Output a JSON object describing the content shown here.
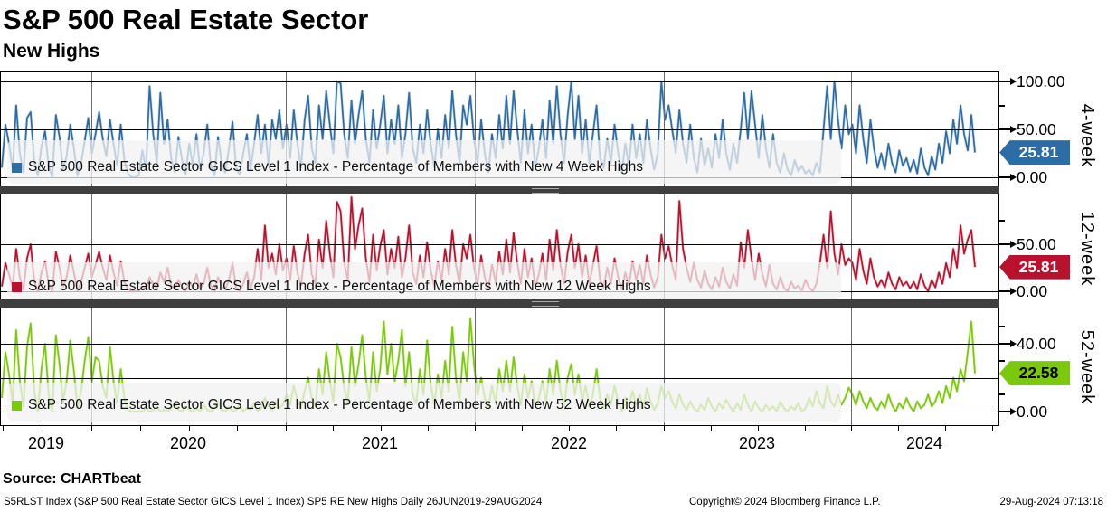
{
  "header": {
    "title": "S&P 500 Real Estate Sector",
    "subtitle": "New Highs"
  },
  "source": "Source: CHARTbeat",
  "footer": {
    "left": "S5RLST Index (S&P 500 Real Estate Sector GICS Level 1 Index) SP5 RE New Highs  Daily 26JUN2019-29AUG2024",
    "center": "Copyright© 2024 Bloomberg Finance L.P.",
    "right": "29-Aug-2024 07:13:18"
  },
  "x_axis": {
    "years": [
      "2019",
      "2020",
      "2021",
      "2022",
      "2023",
      "2024"
    ]
  },
  "chart_data": {
    "type": "line",
    "title": "S&P 500 Real Estate Sector New Highs",
    "periodicity": "Daily",
    "date_range": "26JUN2019-29AUG2024",
    "x_tick_labels": [
      "2019",
      "2020",
      "2021",
      "2022",
      "2023",
      "2024"
    ],
    "grid": true,
    "legend_position": "inside bottom-left of each panel",
    "sampling_note": "approximate weekly values read from pixels, percent of members",
    "panels": [
      {
        "name": "4-week",
        "legend": "S&P 500 Real Estate Sector GICS Level 1 Index - Percentage of Members with New 4 Week Highs",
        "color": "#2e6da4",
        "light_color": "#a9c4dd",
        "badge": "25.81",
        "badge_text_color": "#ffffff",
        "last_value": 25.81,
        "ylim": [
          -9,
          110
        ],
        "gridlines": [
          0,
          50,
          100
        ],
        "ticks": [
          {
            "v": 100,
            "label": "100.00"
          },
          {
            "v": 50,
            "label": "50.00"
          },
          {
            "v": 0,
            "label": "0.00"
          }
        ],
        "minor_ticks": [
          75
        ],
        "values": [
          10,
          55,
          35,
          8,
          75,
          25,
          5,
          62,
          68,
          15,
          2,
          32,
          48,
          12,
          0,
          65,
          42,
          8,
          22,
          55,
          30,
          2,
          15,
          38,
          62,
          25,
          45,
          68,
          40,
          22,
          60,
          35,
          12,
          55,
          18,
          4,
          0,
          0,
          2,
          28,
          8,
          95,
          45,
          15,
          88,
          35,
          60,
          20,
          5,
          42,
          18,
          3,
          35,
          12,
          45,
          8,
          25,
          55,
          12,
          2,
          42,
          15,
          5,
          30,
          58,
          10,
          3,
          25,
          45,
          8,
          35,
          65,
          25,
          55,
          12,
          60,
          40,
          70,
          30,
          55,
          20,
          70,
          35,
          10,
          60,
          85,
          30,
          15,
          75,
          40,
          90,
          55,
          25,
          100,
          98,
          45,
          20,
          80,
          35,
          65,
          90,
          40,
          15,
          70,
          30,
          55,
          85,
          25,
          60,
          35,
          75,
          20,
          45,
          88,
          30,
          15,
          55,
          25,
          70,
          35,
          10,
          50,
          20,
          65,
          30,
          90,
          45,
          15,
          75,
          55,
          85,
          40,
          15,
          60,
          25,
          5,
          45,
          20,
          65,
          30,
          85,
          35,
          90,
          50,
          15,
          70,
          25,
          55,
          10,
          30,
          60,
          20,
          80,
          35,
          95,
          45,
          15,
          65,
          100,
          40,
          85,
          25,
          60,
          15,
          45,
          75,
          20,
          10,
          40,
          15,
          55,
          25,
          5,
          35,
          12,
          55,
          20,
          45,
          15,
          60,
          30,
          8,
          25,
          100,
          60,
          75,
          50,
          25,
          70,
          35,
          15,
          55,
          20,
          5,
          40,
          12,
          30,
          10,
          45,
          20,
          60,
          25,
          8,
          35,
          15,
          50,
          88,
          40,
          90,
          55,
          20,
          65,
          30,
          10,
          45,
          15,
          5,
          25,
          8,
          2,
          18,
          6,
          12,
          4,
          8,
          2,
          15,
          5,
          50,
          95,
          40,
          100,
          60,
          30,
          75,
          45,
          55,
          25,
          75,
          40,
          15,
          60,
          30,
          10,
          25,
          8,
          35,
          15,
          5,
          28,
          12,
          20,
          6,
          18,
          4,
          30,
          10,
          2,
          22,
          8,
          35,
          15,
          48,
          25,
          60,
          35,
          75,
          45,
          28,
          65,
          25.81
        ]
      },
      {
        "name": "12-week",
        "legend": "S&P 500 Real Estate Sector GICS Level 1 Index - Percentage of Members with New 12 Week Highs",
        "color": "#b8122f",
        "light_color": "#dda0aa",
        "badge": "25.81",
        "badge_text_color": "#ffffff",
        "last_value": 25.81,
        "ylim": [
          -9,
          102
        ],
        "gridlines": [
          0,
          50
        ],
        "ticks": [
          {
            "v": 50,
            "label": "50.00"
          },
          {
            "v": 0,
            "label": "0.00"
          }
        ],
        "minor_ticks": [
          75
        ],
        "values": [
          5,
          30,
          18,
          4,
          45,
          15,
          2,
          35,
          50,
          10,
          0,
          20,
          32,
          8,
          0,
          42,
          25,
          5,
          15,
          38,
          20,
          0,
          10,
          25,
          40,
          15,
          28,
          42,
          25,
          12,
          38,
          20,
          6,
          32,
          10,
          2,
          0,
          0,
          0,
          5,
          2,
          15,
          8,
          3,
          20,
          10,
          25,
          6,
          2,
          12,
          5,
          0,
          10,
          4,
          18,
          3,
          8,
          25,
          6,
          0,
          15,
          5,
          2,
          12,
          30,
          4,
          0,
          8,
          20,
          3,
          15,
          45,
          12,
          70,
          25,
          40,
          18,
          50,
          22,
          35,
          12,
          48,
          20,
          6,
          40,
          60,
          18,
          8,
          55,
          25,
          75,
          40,
          15,
          95,
          85,
          30,
          12,
          100,
          45,
          70,
          88,
          35,
          10,
          60,
          22,
          48,
          65,
          18,
          45,
          25,
          58,
          15,
          35,
          70,
          20,
          8,
          38,
          15,
          52,
          22,
          5,
          32,
          12,
          45,
          18,
          65,
          28,
          8,
          50,
          35,
          60,
          25,
          8,
          38,
          15,
          2,
          28,
          10,
          42,
          18,
          55,
          20,
          62,
          30,
          8,
          45,
          15,
          35,
          5,
          18,
          40,
          12,
          55,
          22,
          65,
          28,
          8,
          42,
          60,
          25,
          50,
          15,
          38,
          8,
          28,
          48,
          12,
          4,
          25,
          8,
          35,
          15,
          2,
          20,
          6,
          32,
          12,
          28,
          8,
          38,
          18,
          4,
          15,
          60,
          35,
          48,
          28,
          12,
          96,
          45,
          25,
          10,
          30,
          12,
          4,
          22,
          8,
          2,
          15,
          5,
          25,
          10,
          3,
          18,
          6,
          52,
          25,
          65,
          35,
          12,
          40,
          18,
          5,
          28,
          8,
          2,
          15,
          4,
          0,
          10,
          3,
          6,
          1,
          12,
          4,
          0,
          8,
          30,
          60,
          25,
          85,
          40,
          18,
          50,
          28,
          35,
          30,
          12,
          45,
          22,
          8,
          35,
          15,
          5,
          12,
          4,
          20,
          8,
          2,
          15,
          6,
          10,
          3,
          10,
          2,
          18,
          6,
          0,
          12,
          4,
          20,
          8,
          30,
          15,
          45,
          25,
          70,
          40,
          55,
          65,
          25.81
        ]
      },
      {
        "name": "52-week",
        "legend": "S&P 500 Real Estate Sector GICS Level 1 Index - Percentage of Members with New 52 Week Highs",
        "color": "#7cc80e",
        "light_color": "#c8e88f",
        "badge": "22.58",
        "badge_text_color": "#000000",
        "last_value": 22.58,
        "ylim": [
          -8,
          61
        ],
        "gridlines": [
          0,
          20,
          40
        ],
        "ticks": [
          {
            "v": 40,
            "label": "40.00"
          },
          {
            "v": 0,
            "label": "0.00"
          }
        ],
        "minor_ticks": [
          50,
          30,
          10
        ],
        "values": [
          8,
          35,
          22,
          5,
          48,
          18,
          3,
          38,
          52,
          12,
          0,
          25,
          40,
          10,
          0,
          45,
          28,
          6,
          18,
          42,
          24,
          2,
          12,
          30,
          44,
          18,
          32,
          30,
          15,
          8,
          38,
          18,
          5,
          25,
          8,
          1,
          0,
          0,
          0,
          0,
          2,
          0,
          1,
          3,
          0,
          1,
          0,
          2,
          5,
          1,
          0,
          3,
          1,
          0,
          2,
          0,
          4,
          1,
          0,
          2,
          6,
          1,
          0,
          3,
          0,
          1,
          4,
          0,
          2,
          1,
          5,
          0,
          2,
          8,
          3,
          1,
          6,
          2,
          4,
          10,
          4,
          15,
          7,
          2,
          12,
          20,
          8,
          3,
          25,
          10,
          35,
          18,
          6,
          40,
          32,
          14,
          5,
          38,
          15,
          28,
          45,
          20,
          6,
          35,
          12,
          25,
          53,
          22,
          40,
          18,
          30,
          48,
          15,
          35,
          10,
          5,
          25,
          10,
          42,
          16,
          4,
          22,
          8,
          30,
          12,
          50,
          20,
          6,
          35,
          18,
          55,
          28,
          10,
          20,
          8,
          2,
          15,
          5,
          25,
          12,
          30,
          12,
          32,
          15,
          4,
          22,
          8,
          18,
          3,
          8,
          18,
          5,
          25,
          10,
          30,
          12,
          3,
          20,
          28,
          10,
          22,
          6,
          15,
          3,
          10,
          25,
          8,
          2,
          10,
          4,
          15,
          6,
          0,
          8,
          3,
          12,
          4,
          10,
          2,
          14,
          6,
          1,
          5,
          15,
          8,
          12,
          6,
          2,
          10,
          4,
          1,
          6,
          2,
          0,
          4,
          1,
          8,
          3,
          0,
          5,
          2,
          7,
          3,
          0,
          5,
          1,
          10,
          4,
          0,
          6,
          2,
          0,
          4,
          1,
          3,
          0,
          6,
          2,
          0,
          3,
          1,
          5,
          0,
          2,
          8,
          3,
          12,
          5,
          2,
          15,
          6,
          3,
          10,
          4,
          8,
          14,
          10,
          4,
          12,
          6,
          2,
          8,
          3,
          1,
          6,
          2,
          10,
          4,
          0,
          5,
          2,
          8,
          3,
          0,
          6,
          2,
          4,
          10,
          3,
          6,
          12,
          5,
          15,
          8,
          20,
          12,
          25,
          18,
          35,
          53,
          22.58
        ]
      }
    ]
  }
}
